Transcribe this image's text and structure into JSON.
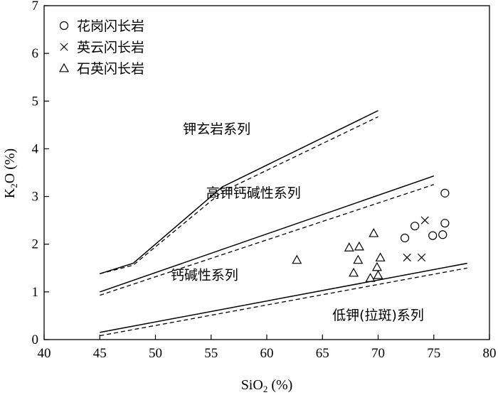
{
  "chart_data": {
    "type": "scatter",
    "xlabel_main": "SiO",
    "xlabel_sub": "2",
    "xlabel_unit": " (%)",
    "ylabel_main": "K",
    "ylabel_sub": "2",
    "ylabel_rest": "O (%)",
    "xlim": [
      40,
      80
    ],
    "ylim": [
      0,
      7
    ],
    "xticks": [
      40,
      45,
      50,
      55,
      60,
      65,
      70,
      75,
      80
    ],
    "yticks": [
      0,
      1,
      2,
      3,
      4,
      5,
      6,
      7
    ],
    "grid": false,
    "legend_position": "top-left",
    "series": [
      {
        "name": "花岗闪长岩",
        "marker": "circle",
        "points": [
          [
            72.4,
            2.13
          ],
          [
            73.3,
            2.38
          ],
          [
            74.9,
            2.18
          ],
          [
            75.8,
            2.2
          ],
          [
            76.0,
            2.44
          ],
          [
            76.0,
            3.07
          ]
        ]
      },
      {
        "name": "英云闪长岩",
        "marker": "cross",
        "points": [
          [
            72.6,
            1.72
          ],
          [
            73.9,
            1.72
          ],
          [
            74.2,
            2.5
          ]
        ]
      },
      {
        "name": "石英闪长岩",
        "marker": "triangle",
        "points": [
          [
            62.7,
            1.67
          ],
          [
            67.4,
            1.93
          ],
          [
            67.8,
            1.4
          ],
          [
            68.2,
            1.67
          ],
          [
            68.3,
            1.95
          ],
          [
            69.3,
            1.29
          ],
          [
            69.6,
            2.23
          ],
          [
            69.9,
            1.52
          ],
          [
            70.0,
            1.35
          ],
          [
            70.2,
            1.72
          ]
        ]
      }
    ],
    "boundaries": [
      {
        "style": "solid",
        "points": [
          [
            45,
            1.38
          ],
          [
            48,
            1.6
          ],
          [
            56,
            3.2
          ],
          [
            70,
            4.8
          ]
        ]
      },
      {
        "style": "dashed",
        "points": [
          [
            45,
            1.38
          ],
          [
            48,
            1.56
          ],
          [
            56,
            3.1
          ],
          [
            70,
            4.67
          ]
        ]
      },
      {
        "style": "solid",
        "points": [
          [
            45,
            1.0
          ],
          [
            75,
            3.43
          ]
        ]
      },
      {
        "style": "dashed",
        "points": [
          [
            45,
            0.93
          ],
          [
            75,
            3.25
          ]
        ]
      },
      {
        "style": "solid",
        "points": [
          [
            45,
            0.15
          ],
          [
            78,
            1.6
          ]
        ]
      },
      {
        "style": "dashed",
        "points": [
          [
            45,
            0.08
          ],
          [
            78,
            1.5
          ]
        ]
      }
    ],
    "region_labels": [
      {
        "text": "钾玄岩系列",
        "x": 55.5,
        "y": 4.32
      },
      {
        "text": "高钾钙碱性系列",
        "x": 58.8,
        "y": 2.98
      },
      {
        "text": "钙碱性系列",
        "x": 54.4,
        "y": 1.26
      },
      {
        "text": "低钾(拉斑)系列",
        "x": 70.0,
        "y": 0.42
      }
    ]
  }
}
